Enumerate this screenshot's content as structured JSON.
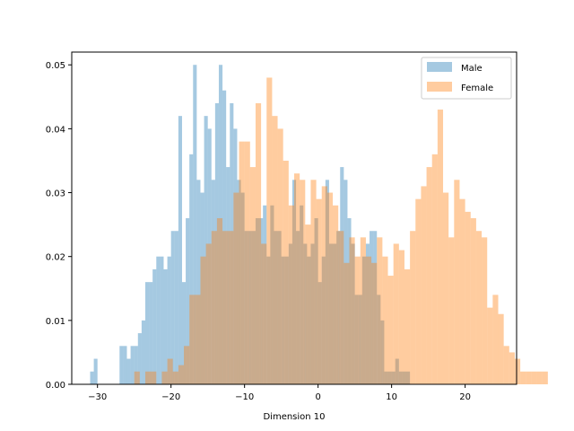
{
  "chart_data": {
    "type": "bar",
    "subtype": "overlaid-histogram",
    "title": "",
    "xlabel": "Dimension 10",
    "ylabel": "",
    "xlim": [
      -33.5,
      27
    ],
    "ylim": [
      0,
      0.052
    ],
    "xticks": [
      -30,
      -20,
      -10,
      0,
      10,
      20
    ],
    "xtick_labels": [
      "−30",
      "−20",
      "−10",
      "0",
      "10",
      "20"
    ],
    "yticks": [
      0,
      0.01,
      0.02,
      0.03,
      0.04,
      0.05
    ],
    "ytick_labels": [
      "0.00",
      "0.01",
      "0.02",
      "0.03",
      "0.04",
      "0.05"
    ],
    "grid": false,
    "legend_placement": "top-right",
    "series": [
      {
        "name": "Male",
        "color": "#1f77b4",
        "opacity": 0.4,
        "bin_start": -31,
        "bin_width": 0.5,
        "values": [
          0.002,
          0.004,
          0,
          0,
          0,
          0,
          0,
          0,
          0.006,
          0.006,
          0.004,
          0.006,
          0.006,
          0.008,
          0.01,
          0.016,
          0.016,
          0.018,
          0.02,
          0.02,
          0.018,
          0.02,
          0.024,
          0.024,
          0.042,
          0.016,
          0.026,
          0.036,
          0.05,
          0.032,
          0.03,
          0.042,
          0.04,
          0.032,
          0.044,
          0.05,
          0.046,
          0.034,
          0.044,
          0.04,
          0.032,
          0.03,
          0.024,
          0.024,
          0.024,
          0.026,
          0.026,
          0.028,
          0.02,
          0.028,
          0.024,
          0.024,
          0.02,
          0.02,
          0.022,
          0.032,
          0.024,
          0.028,
          0.022,
          0.02,
          0.022,
          0.026,
          0.016,
          0.02,
          0.032,
          0.022,
          0.022,
          0.024,
          0.034,
          0.032,
          0.026,
          0.022,
          0.014,
          0.014,
          0.02,
          0.022,
          0.024,
          0.024,
          0.014,
          0.01,
          0.002,
          0.002,
          0.002,
          0.004,
          0.002,
          0.002,
          0.002,
          0,
          0,
          0,
          0,
          0,
          0,
          0,
          0,
          0,
          0,
          0,
          0,
          0,
          0,
          0,
          0,
          0,
          0,
          0,
          0,
          0,
          0,
          0,
          0
        ]
      },
      {
        "name": "Female",
        "color": "#ff7f0e",
        "opacity": 0.4,
        "bin_start": -25,
        "bin_width": 0.75,
        "values": [
          0.002,
          0,
          0.002,
          0.002,
          0,
          0.002,
          0.004,
          0.002,
          0.003,
          0.006,
          0.014,
          0.014,
          0.02,
          0.022,
          0.024,
          0.026,
          0.024,
          0.024,
          0.03,
          0.038,
          0.038,
          0.034,
          0.044,
          0.022,
          0.048,
          0.042,
          0.04,
          0.035,
          0.028,
          0.033,
          0.032,
          0.025,
          0.032,
          0.029,
          0.031,
          0.03,
          0.028,
          0.024,
          0.019,
          0.023,
          0.02,
          0.023,
          0.02,
          0.019,
          0.023,
          0.02,
          0.017,
          0.022,
          0.021,
          0.018,
          0.024,
          0.029,
          0.031,
          0.034,
          0.036,
          0.043,
          0.03,
          0.023,
          0.032,
          0.029,
          0.027,
          0.026,
          0.024,
          0.023,
          0.012,
          0.014,
          0.011,
          0.006,
          0.005,
          0.004,
          0.002,
          0.002,
          0.002,
          0.002,
          0.002,
          0,
          0,
          0,
          0,
          0,
          0.001
        ]
      }
    ]
  }
}
